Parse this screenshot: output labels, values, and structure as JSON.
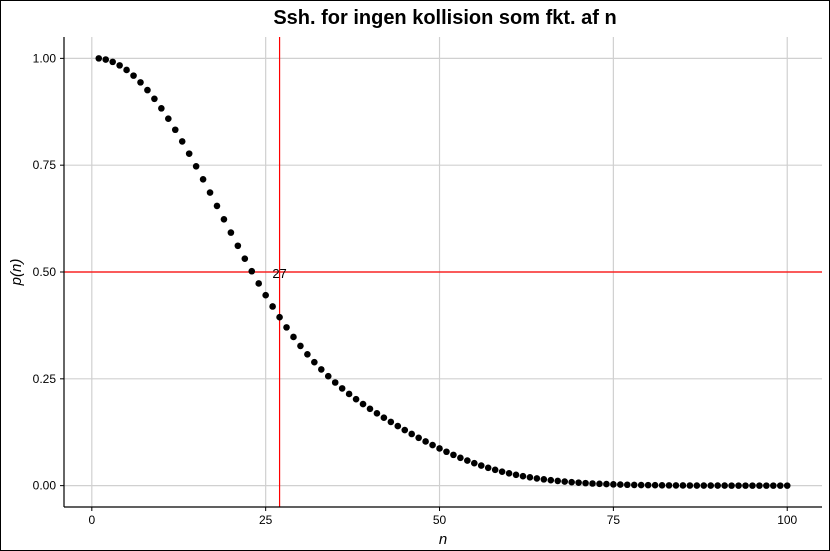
{
  "chart_data": {
    "type": "scatter",
    "title": "Ssh. for ingen kollision som fkt. af n",
    "xlabel": "n",
    "ylabel": "p(n)",
    "xlim": [
      -4,
      105
    ],
    "ylim": [
      -0.05,
      1.05
    ],
    "x_ticks": [
      0,
      25,
      50,
      75,
      100
    ],
    "x_tick_labels": [
      "0",
      "25",
      "50",
      "75",
      "100"
    ],
    "y_ticks": [
      0,
      0.25,
      0.5,
      0.75,
      1
    ],
    "y_tick_labels": [
      "0.00",
      "0.25",
      "0.50",
      "0.75",
      "1.00"
    ],
    "grid": true,
    "point_color": "#000000",
    "reference_lines": [
      {
        "orientation": "horizontal",
        "value": 0.5,
        "color": "#ff0000"
      },
      {
        "orientation": "vertical",
        "value": 27,
        "color": "#ff0000"
      }
    ],
    "annotation": {
      "text": "27",
      "x": 27,
      "y": 0.5
    },
    "series": [
      {
        "x": [
          1,
          2,
          3,
          4,
          5,
          6,
          7,
          8,
          9,
          10,
          11,
          12,
          13,
          14,
          15,
          16,
          17,
          18,
          19,
          20,
          21,
          22,
          23,
          24,
          25,
          26,
          27,
          28,
          29,
          30,
          31,
          32,
          33,
          34,
          35,
          36,
          37,
          38,
          39,
          40,
          41,
          42,
          43,
          44,
          45,
          46,
          47,
          48,
          49,
          50,
          51,
          52,
          53,
          54,
          55,
          56,
          57,
          58,
          59,
          60,
          61,
          62,
          63,
          64,
          65,
          66,
          67,
          68,
          69,
          70,
          71,
          72,
          73,
          74,
          75,
          76,
          77,
          78,
          79,
          80,
          81,
          82,
          83,
          84,
          85,
          86,
          87,
          88,
          89,
          90,
          91,
          92,
          93,
          94,
          95,
          96,
          97,
          98,
          99,
          100
        ],
        "values": [
          1.0,
          0.9973,
          0.9918,
          0.9836,
          0.9729,
          0.9596,
          0.9438,
          0.9257,
          0.9054,
          0.883,
          0.8588,
          0.8329,
          0.8056,
          0.777,
          0.7474,
          0.717,
          0.686,
          0.6547,
          0.6234,
          0.5922,
          0.5614,
          0.5312,
          0.5018,
          0.4732,
          0.4457,
          0.4193,
          0.3942,
          0.3704,
          0.348,
          0.327,
          0.3073,
          0.289,
          0.272,
          0.2561,
          0.2414,
          0.2276,
          0.2146,
          0.2024,
          0.1909,
          0.1798,
          0.1692,
          0.159,
          0.1491,
          0.1394,
          0.1301,
          0.1209,
          0.112,
          0.1034,
          0.095,
          0.087,
          0.0793,
          0.072,
          0.0651,
          0.0586,
          0.0525,
          0.0469,
          0.0417,
          0.037,
          0.0327,
          0.0288,
          0.0253,
          0.0222,
          0.0194,
          0.0169,
          0.0147,
          0.0127,
          0.011,
          0.0095,
          0.0081,
          0.007,
          0.0059,
          0.005,
          0.0043,
          0.0036,
          0.003,
          0.0025,
          0.0021,
          0.0017,
          0.0014,
          0.0012,
          0.001,
          0.0008,
          0.0006,
          0.0005,
          0.0004,
          0.0003,
          0.0002,
          0.0002,
          0.0001,
          0.0001,
          0.0001,
          0.0,
          0.0,
          0.0,
          0.0,
          0.0,
          0.0,
          0.0,
          0.0,
          0.0
        ]
      }
    ]
  }
}
